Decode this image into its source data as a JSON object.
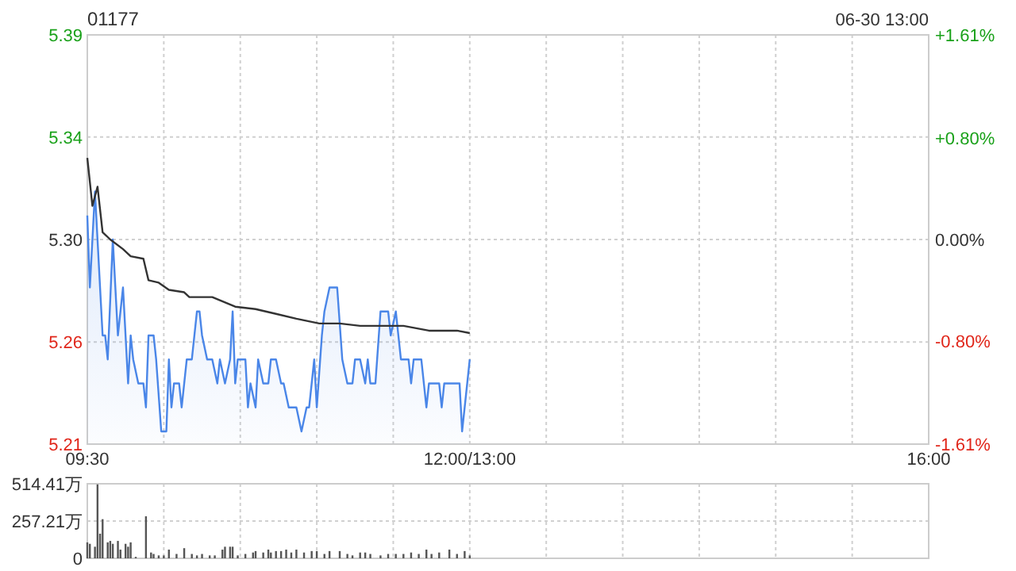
{
  "chart_data": [
    {
      "type": "line",
      "title": "01177",
      "annotations": [
        "06-30 13:00"
      ],
      "categories": [
        "09:30",
        null,
        null,
        null,
        null,
        null,
        null,
        null,
        null,
        null,
        null,
        null,
        null,
        null,
        null,
        null,
        null,
        null,
        null,
        null,
        null,
        null,
        null,
        null,
        null,
        null,
        null,
        null,
        null,
        null,
        null,
        null,
        null,
        null,
        null,
        null,
        null,
        null,
        null,
        null,
        null,
        null,
        null,
        null,
        null,
        null,
        null,
        null,
        null,
        null,
        null,
        null,
        null,
        null,
        null,
        null,
        null,
        null,
        null,
        null,
        null,
        null,
        null,
        null,
        null,
        null,
        null,
        null,
        null,
        null,
        null,
        null,
        null,
        null,
        null,
        null,
        null,
        null,
        null,
        null,
        null,
        null,
        null,
        null,
        null,
        null,
        null,
        null,
        null,
        null,
        null,
        null,
        null,
        null,
        null,
        null,
        null,
        null,
        null,
        null,
        null,
        null,
        null,
        null,
        null,
        null,
        null,
        null,
        null,
        null,
        null,
        null,
        null,
        null,
        null,
        null,
        null,
        null,
        null,
        null,
        null,
        null,
        null,
        null,
        null,
        null,
        null,
        null,
        null,
        null,
        null,
        null,
        null,
        null,
        null,
        null,
        null,
        null,
        null,
        null,
        null,
        null,
        null,
        null,
        null,
        null,
        null,
        null,
        null,
        null,
        "12:00/13:00",
        null,
        null,
        null,
        null,
        null,
        null,
        null,
        null,
        null,
        null,
        null,
        null,
        null,
        null,
        null,
        null,
        null,
        null,
        null,
        null,
        null,
        null,
        null,
        null,
        null,
        null,
        null,
        null,
        null,
        null,
        null,
        null,
        null,
        null,
        null,
        null,
        null,
        null,
        null,
        null,
        null,
        null,
        null,
        null,
        null,
        null,
        null,
        null,
        null,
        null,
        null,
        null,
        null,
        null,
        null,
        null,
        null,
        null,
        null,
        null,
        null,
        null,
        null,
        null,
        null,
        null,
        null,
        null,
        null,
        null,
        null,
        null,
        null,
        null,
        null,
        null,
        null,
        null,
        null,
        null,
        null,
        null,
        null,
        null,
        null,
        null,
        null,
        null,
        null,
        null,
        null,
        null,
        null,
        null,
        null,
        null,
        null,
        null,
        null,
        null,
        null,
        null,
        null,
        null,
        null,
        null,
        null,
        null,
        null,
        null,
        null,
        null,
        null,
        null,
        null,
        null,
        null,
        null,
        null,
        null,
        null,
        null,
        null,
        null,
        null,
        null,
        null,
        null,
        null,
        null,
        null,
        null,
        null,
        null,
        null,
        null,
        null,
        null,
        null,
        null,
        null,
        null,
        null,
        null,
        null,
        null,
        null,
        null,
        null,
        null,
        null,
        null,
        null,
        null,
        null,
        null,
        null,
        null,
        null,
        null,
        null,
        null,
        null,
        null,
        null,
        null,
        null,
        null,
        null,
        null,
        null,
        null,
        null,
        null,
        null,
        null,
        null,
        null,
        null,
        "16:00"
      ],
      "ylim": [
        5.2147,
        5.3853
      ],
      "yticks": [
        {
          "value": 5.2147,
          "label": "5.21"
        },
        {
          "value": 5.2573,
          "label": "5.26"
        },
        {
          "value": 5.3,
          "label": "5.30"
        },
        {
          "value": 5.3427,
          "label": "5.34"
        },
        {
          "value": 5.3853,
          "label": "5.39"
        }
      ],
      "y2lim": [
        -1.61,
        1.61
      ],
      "y2ticks": [
        {
          "value": -1.61,
          "label": "-1.61%"
        },
        {
          "value": -0.8,
          "label": "-0.80%"
        },
        {
          "value": 0,
          "label": "0.00%"
        },
        {
          "value": 0.8,
          "label": "+0.80%"
        },
        {
          "value": 1.61,
          "label": "+1.61%"
        }
      ],
      "grid": true,
      "series": [
        {
          "type": "area",
          "color": "#4a86e8",
          "values": [
            5.31,
            5.28,
            null,
            5.32,
            5.3,
            null,
            5.26,
            5.26,
            5.25,
            null,
            5.3,
            null,
            5.26,
            null,
            5.28,
            null,
            5.24,
            5.26,
            5.25,
            null,
            5.24,
            null,
            5.24,
            5.23,
            5.26,
            null,
            5.26,
            5.25,
            null,
            5.22,
            null,
            5.22,
            5.25,
            5.23,
            5.24,
            null,
            5.24,
            5.23,
            null,
            5.25,
            null,
            5.25,
            null,
            5.27,
            5.27,
            5.26,
            null,
            5.25,
            null,
            5.25,
            null,
            5.24,
            5.25,
            null,
            5.24,
            null,
            5.25,
            5.27,
            5.24,
            5.25,
            null,
            null,
            5.25,
            5.23,
            5.24,
            null,
            5.23,
            5.25,
            null,
            5.24,
            null,
            5.24,
            5.25,
            null,
            5.25,
            null,
            5.24,
            5.24,
            null,
            5.23,
            null,
            null,
            5.23,
            null,
            5.22,
            null,
            5.23,
            5.23,
            null,
            5.25,
            5.23,
            null,
            5.26,
            5.27,
            null,
            5.28,
            null,
            null,
            5.28,
            null,
            5.25,
            null,
            5.24,
            null,
            5.24,
            5.25,
            null,
            5.25,
            null,
            5.24,
            5.25,
            5.24,
            null,
            5.24,
            null,
            5.27,
            null,
            null,
            5.27,
            5.26,
            null,
            5.27,
            5.26,
            5.25,
            null,
            null,
            5.25,
            5.24,
            5.25,
            null,
            null,
            5.25,
            null,
            5.23,
            5.24,
            null,
            null,
            null,
            5.24,
            5.23,
            5.24,
            null,
            null,
            null,
            null,
            null,
            5.24,
            5.22,
            null,
            null,
            5.25,
            null,
            null,
            null,
            null,
            null,
            null,
            null,
            null,
            null,
            null,
            null,
            null,
            null,
            null,
            null,
            null,
            null,
            null,
            null,
            null,
            null,
            null,
            null,
            null,
            null,
            null,
            null,
            null,
            null,
            null,
            null,
            null,
            null,
            null,
            null,
            null,
            null,
            null,
            null,
            null,
            null,
            null,
            null,
            null,
            null,
            null,
            null,
            null,
            null,
            null,
            null,
            null,
            null,
            null,
            null,
            null,
            null,
            null,
            null,
            null,
            null,
            null,
            null,
            null,
            null,
            null,
            null,
            null,
            null,
            null,
            null,
            null,
            null,
            null,
            null,
            null,
            null,
            null,
            null,
            null,
            null,
            null,
            null,
            null,
            null,
            null,
            null,
            null,
            null,
            null,
            null,
            null,
            null,
            null,
            null,
            null,
            null,
            null,
            null,
            null,
            null,
            null,
            null,
            null,
            null,
            null,
            null,
            null,
            null,
            null,
            null,
            null,
            null,
            null,
            null,
            null,
            null,
            null,
            null,
            null,
            null,
            null,
            null,
            null,
            null,
            null,
            null,
            null,
            null,
            null,
            null,
            null,
            null,
            null,
            null,
            null,
            null,
            null,
            null,
            null,
            null,
            null,
            null,
            null,
            null,
            null,
            null,
            null,
            null,
            null,
            null,
            null,
            null,
            null,
            null,
            null,
            null,
            null,
            null,
            null,
            null,
            null,
            null,
            null,
            null,
            null,
            null,
            null,
            null,
            null,
            null,
            null,
            null,
            null,
            null,
            null,
            null,
            null,
            null,
            null
          ]
        },
        {
          "color": "#333333",
          "values": [
            5.334,
            null,
            5.314,
            5.318,
            5.322,
            null,
            5.303,
            null,
            null,
            5.3,
            null,
            null,
            null,
            null,
            5.296,
            null,
            null,
            5.293,
            null,
            null,
            null,
            null,
            5.292,
            null,
            5.283,
            null,
            null,
            null,
            5.282,
            null,
            null,
            null,
            5.279,
            null,
            null,
            null,
            null,
            null,
            5.278,
            null,
            5.276,
            null,
            null,
            null,
            null,
            null,
            null,
            null,
            null,
            5.276,
            null,
            null,
            null,
            null,
            null,
            null,
            null,
            null,
            5.272,
            null,
            null,
            null,
            null,
            null,
            null,
            null,
            5.271,
            null,
            null,
            null,
            null,
            null,
            null,
            null,
            5.269,
            null,
            null,
            null,
            null,
            null,
            null,
            null,
            5.267,
            null,
            null,
            null,
            null,
            null,
            null,
            null,
            null,
            5.265,
            null,
            null,
            null,
            null,
            null,
            null,
            null,
            5.265,
            null,
            null,
            null,
            null,
            null,
            null,
            null,
            5.264,
            null,
            null,
            null,
            null,
            null,
            null,
            null,
            null,
            null,
            null,
            null,
            null,
            null,
            null,
            null,
            null,
            5.264,
            null,
            null,
            null,
            null,
            null,
            null,
            null,
            null,
            null,
            5.262,
            null,
            null,
            null,
            null,
            null,
            null,
            null,
            null,
            null,
            null,
            5.262,
            null,
            null,
            null,
            null,
            5.261,
            null,
            null,
            null,
            null,
            null,
            null,
            null,
            null,
            null,
            null,
            null,
            null,
            null,
            null,
            null,
            null,
            null,
            null,
            null,
            null,
            null,
            null,
            null,
            null,
            null,
            null,
            null,
            null,
            null,
            null,
            null,
            null,
            null,
            null,
            null,
            null,
            null,
            null,
            null,
            null,
            null,
            null,
            null,
            null,
            null,
            null,
            null,
            null,
            null,
            null,
            null,
            null,
            null,
            null,
            null,
            null,
            null,
            null,
            null,
            null,
            null,
            null,
            null,
            null,
            null,
            null,
            null,
            null,
            null,
            null,
            null,
            null,
            null,
            null,
            null,
            null,
            null,
            null,
            null,
            null,
            null,
            null,
            null,
            null,
            null,
            null,
            null,
            null,
            null,
            null,
            null,
            null,
            null,
            null,
            null,
            null,
            null,
            null,
            null,
            null,
            null,
            null,
            null,
            null,
            null,
            null,
            null,
            null,
            null,
            null,
            null,
            null,
            null,
            null,
            null,
            null,
            null,
            null,
            null,
            null,
            null,
            null,
            null,
            null,
            null,
            null,
            null,
            null,
            null,
            null,
            null,
            null,
            null,
            null,
            null,
            null,
            null,
            null,
            null,
            null,
            null,
            null,
            null,
            null,
            null,
            null,
            null,
            null,
            null,
            null,
            null,
            null,
            null,
            null,
            null,
            null,
            null,
            null,
            null,
            null,
            null,
            null,
            null,
            null,
            null,
            null,
            null,
            null,
            null,
            null,
            null,
            null,
            null,
            null,
            null,
            null,
            null,
            null,
            null,
            null
          ]
        }
      ]
    },
    {
      "type": "bar",
      "categories": [
        null,
        null,
        null,
        null,
        null,
        null,
        null,
        null,
        null,
        null,
        null,
        null,
        null,
        null,
        null,
        null,
        null,
        null,
        null,
        null,
        null,
        null,
        null,
        null,
        null,
        null,
        null,
        null,
        null,
        null,
        null,
        null,
        null,
        null,
        null,
        null,
        null,
        null,
        null,
        null,
        null,
        null,
        null,
        null,
        null,
        null,
        null,
        null,
        null,
        null,
        null,
        null,
        null,
        null,
        null,
        null,
        null,
        null,
        null,
        null,
        null,
        null,
        null,
        null,
        null,
        null,
        null,
        null,
        null,
        null,
        null,
        null,
        null,
        null,
        null,
        null,
        null,
        null,
        null,
        null,
        null,
        null,
        null,
        null,
        null,
        null,
        null,
        null,
        null,
        null,
        null,
        null,
        null,
        null,
        null,
        null,
        null,
        null,
        null,
        null,
        null,
        null,
        null,
        null,
        null,
        null,
        null,
        null,
        null,
        null,
        null,
        null,
        null,
        null,
        null,
        null,
        null,
        null,
        null,
        null,
        null,
        null,
        null,
        null,
        null,
        null,
        null,
        null,
        null,
        null,
        null,
        null,
        null,
        null,
        null,
        null,
        null,
        null,
        null,
        null,
        null,
        null,
        null,
        null,
        null,
        null,
        null,
        null,
        null,
        null,
        null,
        null,
        null,
        null,
        null,
        null,
        null,
        null,
        null,
        null,
        null,
        null,
        null,
        null,
        null,
        null,
        null,
        null,
        null,
        null,
        null,
        null,
        null,
        null,
        null,
        null,
        null,
        null,
        null,
        null,
        null,
        null,
        null,
        null,
        null,
        null,
        null,
        null,
        null,
        null,
        null,
        null,
        null,
        null,
        null,
        null,
        null,
        null,
        null,
        null,
        null,
        null,
        null,
        null,
        null,
        null,
        null,
        null,
        null,
        null,
        null,
        null,
        null,
        null,
        null,
        null,
        null,
        null,
        null,
        null,
        null,
        null,
        null,
        null,
        null,
        null,
        null,
        null,
        null,
        null,
        null,
        null,
        null,
        null,
        null,
        null,
        null,
        null,
        null,
        null,
        null,
        null,
        null,
        null,
        null,
        null,
        null,
        null,
        null,
        null,
        null,
        null,
        null,
        null,
        null,
        null,
        null,
        null,
        null,
        null,
        null,
        null,
        null,
        null,
        null,
        null,
        null,
        null,
        null,
        null,
        null,
        null,
        null,
        null,
        null,
        null,
        null,
        null,
        null,
        null,
        null,
        null,
        null,
        null,
        null,
        null,
        null,
        null,
        null,
        null,
        null,
        null,
        null,
        null,
        null,
        null,
        null,
        null,
        null,
        null,
        null,
        null,
        null,
        null,
        null,
        null,
        null,
        null,
        null,
        null,
        null,
        null,
        null,
        null,
        null,
        null,
        null,
        null,
        null,
        null,
        null,
        null,
        null,
        null,
        null,
        null,
        null,
        null,
        null,
        null,
        null
      ],
      "ylim": [
        0,
        514.41
      ],
      "yticks": [
        0,
        {
          "value": 257.21,
          "label": "257.21万"
        },
        {
          "value": 514.41,
          "label": "514.41万"
        }
      ],
      "tick_labels": "y",
      "grid": true,
      "series": [
        {
          "color": "#555555",
          "values": [
            110,
            100,
            null,
            80,
            510,
            170,
            270,
            null,
            110,
            120,
            100,
            null,
            120,
            60,
            null,
            100,
            80,
            110,
            null,
            10,
            null,
            null,
            null,
            290,
            null,
            40,
            30,
            null,
            20,
            null,
            20,
            null,
            60,
            null,
            null,
            30,
            null,
            null,
            70,
            null,
            null,
            30,
            null,
            20,
            null,
            30,
            null,
            null,
            20,
            null,
            20,
            null,
            null,
            60,
            80,
            null,
            80,
            80,
            null,
            20,
            null,
            null,
            30,
            null,
            null,
            40,
            50,
            null,
            null,
            40,
            null,
            60,
            40,
            null,
            50,
            null,
            50,
            null,
            60,
            null,
            40,
            null,
            60,
            null,
            null,
            40,
            null,
            null,
            50,
            null,
            50,
            null,
            null,
            30,
            null,
            50,
            null,
            null,
            null,
            50,
            null,
            null,
            30,
            null,
            20,
            null,
            null,
            40,
            null,
            40,
            null,
            30,
            null,
            null,
            null,
            20,
            null,
            null,
            30,
            null,
            null,
            30,
            null,
            null,
            30,
            null,
            null,
            40,
            null,
            null,
            30,
            null,
            null,
            60,
            null,
            30,
            null,
            null,
            40,
            null,
            null,
            null,
            60,
            null,
            null,
            30,
            null,
            null,
            50,
            null,
            20,
            null,
            null,
            null,
            null,
            null,
            null,
            null,
            null,
            null,
            null,
            null,
            null,
            null,
            null,
            null,
            null,
            null,
            null,
            null,
            null,
            null,
            null,
            null,
            null,
            null,
            null,
            null,
            null,
            null,
            null,
            null,
            null,
            null,
            null,
            null,
            null,
            null,
            null,
            null,
            null,
            null,
            null,
            null,
            null,
            null,
            null,
            null,
            null,
            null,
            null,
            null,
            null,
            null,
            null,
            null,
            null,
            null,
            null,
            null,
            null,
            null,
            null,
            null,
            null,
            null,
            null,
            null,
            null,
            null,
            null,
            null,
            null,
            null,
            null,
            null,
            null,
            null,
            null,
            null,
            null,
            null,
            null,
            null,
            null,
            null,
            null,
            null,
            null,
            null,
            null,
            null,
            null,
            null,
            null,
            null,
            null,
            null,
            null,
            null,
            null,
            null,
            null,
            null,
            null,
            null,
            null,
            null,
            null,
            null,
            null,
            null,
            null,
            null,
            null,
            null,
            null,
            null,
            null,
            null,
            null,
            null,
            null,
            null,
            null,
            null,
            null,
            null,
            null,
            null,
            null,
            null,
            null,
            null,
            null,
            null,
            null,
            null,
            null,
            null,
            null,
            null,
            null,
            null,
            null,
            null,
            null,
            null,
            null,
            null,
            null,
            null,
            null,
            null,
            null,
            null,
            null,
            null,
            null,
            null,
            null,
            null,
            null,
            null,
            null,
            null,
            null,
            null,
            null,
            null,
            null,
            null,
            null,
            null,
            null,
            null,
            null,
            null,
            null,
            null,
            null
          ]
        }
      ]
    }
  ]
}
